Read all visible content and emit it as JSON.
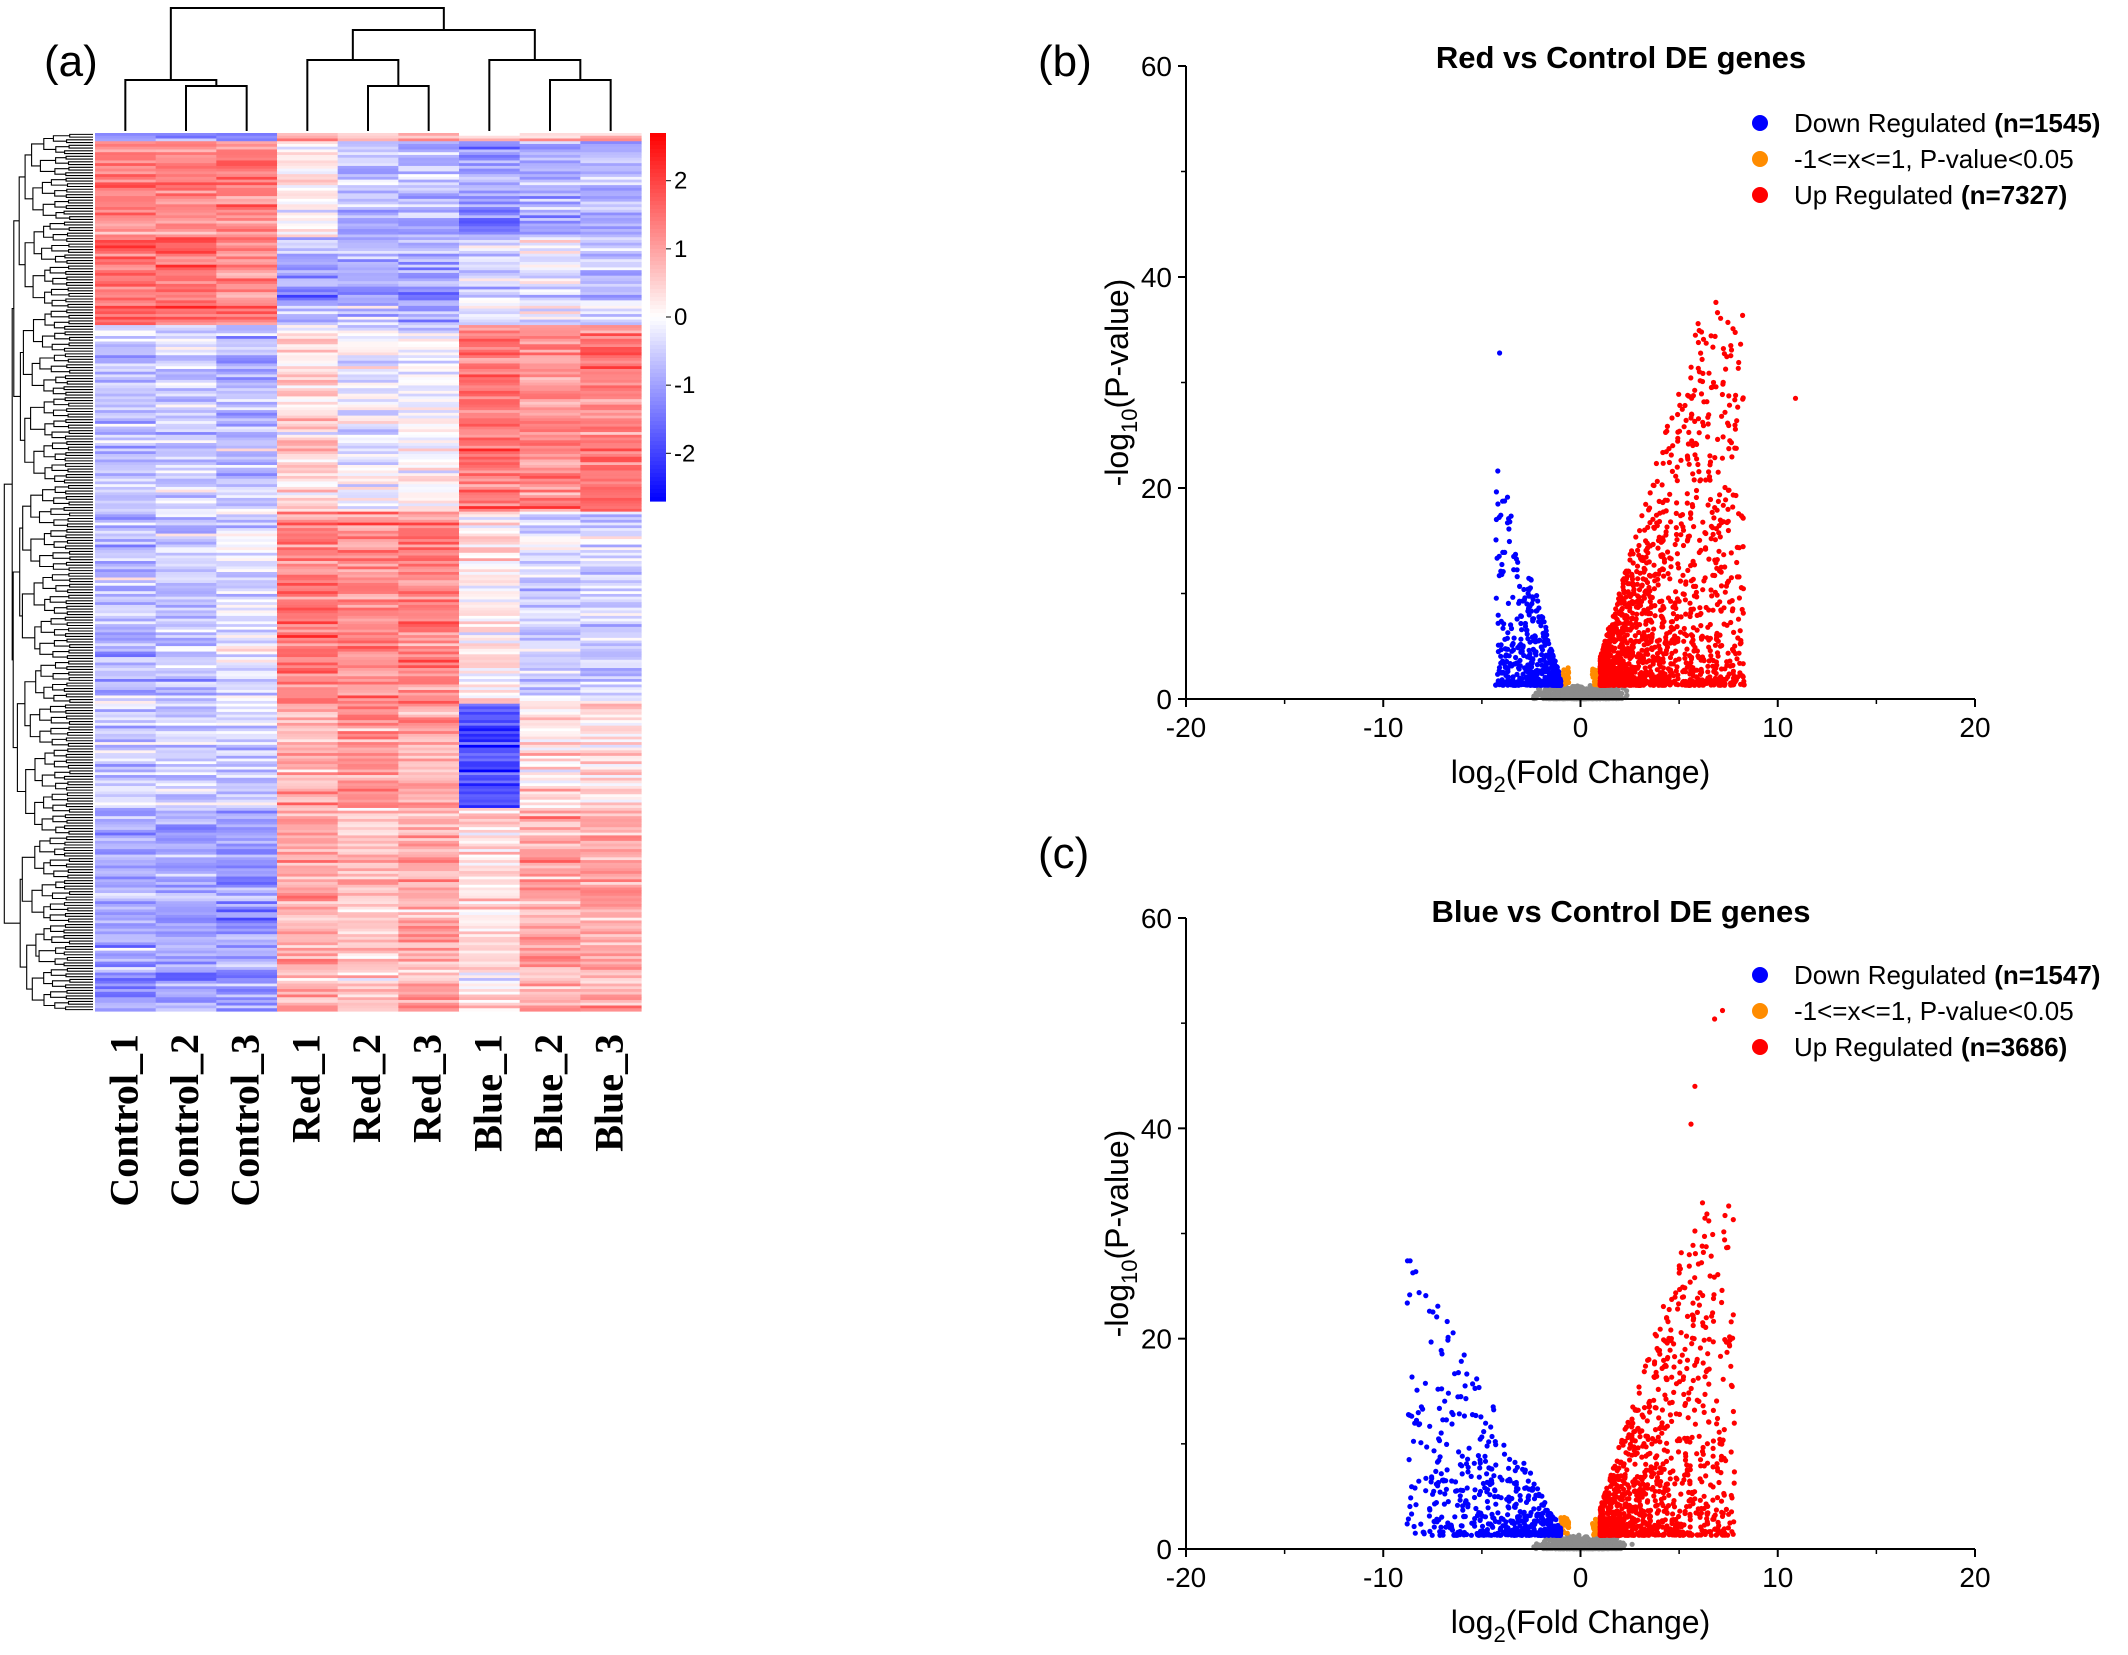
{
  "panels": {
    "a": {
      "label": "(a)"
    },
    "b": {
      "label": "(b)"
    },
    "c": {
      "label": "(c)"
    }
  },
  "colors": {
    "down": "#0000ff",
    "nonsig": "#ff8c00",
    "up": "#ff0000",
    "neutral": "#8c8c8c",
    "heat_low": "#0000ff",
    "heat_mid": "#ffffff",
    "heat_high": "#ff0000"
  },
  "chart_data": [
    {
      "type": "heatmap",
      "columns": [
        "Control_1",
        "Control_2",
        "Control_3",
        "Red_1",
        "Red_2",
        "Red_3",
        "Blue_1",
        "Blue_2",
        "Blue_3"
      ],
      "colorbar_ticks": [
        "2",
        "1",
        "0",
        "-1",
        "-2"
      ],
      "colorbar_range": [
        -2.7,
        2.7
      ],
      "row_dendrogram": true,
      "column_dendrogram": true,
      "column_clusters": [
        [
          "Control_1",
          [
            "Control_2",
            "Control_3"
          ]
        ],
        [
          [
            "Red_1",
            [
              "Red_2",
              "Red_3"
            ]
          ],
          [
            "Blue_1",
            [
              "Blue_2",
              "Blue_3"
            ]
          ]
        ]
      ],
      "row_blocks": [
        {
          "rows": "1-12%",
          "means": [
            1.2,
            1.2,
            1.4,
            0.1,
            -0.7,
            -0.8,
            -1.1,
            -0.9,
            -0.7
          ]
        },
        {
          "rows": "12-22%",
          "means": [
            1.6,
            1.5,
            1.2,
            -1.0,
            -0.8,
            -1.0,
            -0.4,
            -0.3,
            -0.5
          ]
        },
        {
          "rows": "22-43%",
          "means": [
            -0.6,
            -0.5,
            -0.7,
            0.4,
            -0.2,
            -0.1,
            1.4,
            1.2,
            1.4
          ]
        },
        {
          "rows": "43-65%",
          "means": [
            -0.7,
            -0.6,
            -0.3,
            1.4,
            1.2,
            1.3,
            0.2,
            -0.4,
            -0.5
          ]
        },
        {
          "rows": "65-77%",
          "means": [
            -0.5,
            -0.5,
            -0.5,
            0.8,
            1.1,
            0.9,
            -1.9,
            0.3,
            0.4
          ]
        },
        {
          "rows": "77-100%",
          "means": [
            -1.0,
            -1.0,
            -1.1,
            0.9,
            0.6,
            0.8,
            0.3,
            0.8,
            0.9
          ]
        }
      ]
    },
    {
      "type": "scatter",
      "title": "Red vs Control DE genes",
      "xlabel": "log2(Fold Change)",
      "ylabel": "-log10(P-value)",
      "xlim": [
        -20,
        20
      ],
      "ylim": [
        0,
        60
      ],
      "xticks": [
        -20,
        -10,
        0,
        10,
        20
      ],
      "yticks": [
        0,
        20,
        40,
        60
      ],
      "legend_position": "top-right",
      "series": [
        {
          "name": "Down Regulated",
          "count_label": "(n=1545)",
          "color": "#0000ff",
          "x_range": [
            -4.3,
            -1.0
          ],
          "y_range": [
            1.3,
            22
          ],
          "max_point": [
            -4.1,
            32.8
          ]
        },
        {
          "name": "-1<=x<=1, P-value<0.05",
          "color": "#ff8c00",
          "x_range": [
            -1.0,
            1.0
          ],
          "y_range": [
            1.3,
            3
          ]
        },
        {
          "name": "Up Regulated",
          "count_label": "(n=7327)",
          "color": "#ff0000",
          "x_range": [
            1.0,
            8.3
          ],
          "y_range": [
            1.3,
            37.6
          ],
          "outlier": [
            10.9,
            28.5
          ]
        }
      ]
    },
    {
      "type": "scatter",
      "title": "Blue vs Control DE genes",
      "xlabel": "log2(Fold Change)",
      "ylabel": "-log10(P-value)",
      "xlim": [
        -20,
        20
      ],
      "ylim": [
        0,
        60
      ],
      "xticks": [
        -20,
        -10,
        0,
        10,
        20
      ],
      "yticks": [
        0,
        20,
        40,
        60
      ],
      "legend_position": "top-right",
      "series": [
        {
          "name": "Down Regulated",
          "count_label": "(n=1547)",
          "color": "#0000ff",
          "x_range": [
            -8.8,
            -1.0
          ],
          "y_range": [
            1.3,
            27.4
          ]
        },
        {
          "name": "-1<=x<=1, P-value<0.05",
          "color": "#ff8c00",
          "x_range": [
            -1.0,
            1.0
          ],
          "y_range": [
            1.3,
            3
          ]
        },
        {
          "name": "Up Regulated",
          "count_label": "(n=3686)",
          "color": "#ff0000",
          "x_range": [
            1.0,
            7.8
          ],
          "y_range": [
            1.3,
            33
          ],
          "outliers": [
            [
              6.8,
              50.4
            ],
            [
              7.2,
              51.2
            ],
            [
              5.8,
              44.0
            ],
            [
              5.6,
              40.4
            ]
          ]
        }
      ]
    }
  ]
}
